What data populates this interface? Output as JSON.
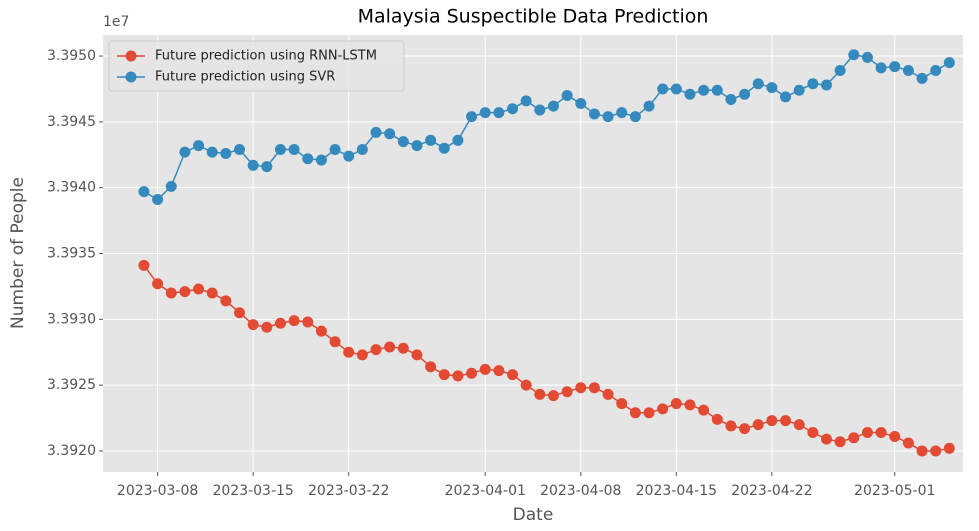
{
  "chart_data": {
    "type": "line",
    "title": "Malaysia Suspectible Data Prediction",
    "x_label": "Date",
    "y_label": "Number of People",
    "y_offset_label": "1e7",
    "x": [
      "2023-03-07",
      "2023-03-08",
      "2023-03-09",
      "2023-03-10",
      "2023-03-11",
      "2023-03-12",
      "2023-03-13",
      "2023-03-14",
      "2023-03-15",
      "2023-03-16",
      "2023-03-17",
      "2023-03-18",
      "2023-03-19",
      "2023-03-20",
      "2023-03-21",
      "2023-03-22",
      "2023-03-23",
      "2023-03-24",
      "2023-03-25",
      "2023-03-26",
      "2023-03-27",
      "2023-03-28",
      "2023-03-29",
      "2023-03-30",
      "2023-03-31",
      "2023-04-01",
      "2023-04-02",
      "2023-04-03",
      "2023-04-04",
      "2023-04-05",
      "2023-04-06",
      "2023-04-07",
      "2023-04-08",
      "2023-04-09",
      "2023-04-10",
      "2023-04-11",
      "2023-04-12",
      "2023-04-13",
      "2023-04-14",
      "2023-04-15",
      "2023-04-16",
      "2023-04-17",
      "2023-04-18",
      "2023-04-19",
      "2023-04-20",
      "2023-04-21",
      "2023-04-22",
      "2023-04-23",
      "2023-04-24",
      "2023-04-25",
      "2023-04-26",
      "2023-04-27",
      "2023-04-28",
      "2023-04-29",
      "2023-04-30",
      "2023-05-01",
      "2023-05-02",
      "2023-05-03",
      "2023-05-04",
      "2023-05-05"
    ],
    "series": [
      {
        "name": "Future prediction using RNN-LSTM",
        "color": "#e24a33",
        "values": [
          3.39341,
          3.39327,
          3.3932,
          3.39321,
          3.39323,
          3.3932,
          3.39314,
          3.39305,
          3.39296,
          3.39294,
          3.39297,
          3.39299,
          3.39298,
          3.39291,
          3.39283,
          3.39275,
          3.39273,
          3.39277,
          3.39279,
          3.39278,
          3.39273,
          3.39264,
          3.39258,
          3.39257,
          3.39259,
          3.39262,
          3.39261,
          3.39258,
          3.3925,
          3.39243,
          3.39242,
          3.39245,
          3.39248,
          3.39248,
          3.39243,
          3.39236,
          3.39229,
          3.39229,
          3.39232,
          3.39236,
          3.39235,
          3.39231,
          3.39224,
          3.39219,
          3.39217,
          3.3922,
          3.39223,
          3.39223,
          3.3922,
          3.39214,
          3.39209,
          3.39207,
          3.3921,
          3.39214,
          3.39214,
          3.39211,
          3.39206,
          3.392,
          3.392,
          3.39202
        ]
      },
      {
        "name": "Future prediction using SVR",
        "color": "#348abd",
        "values": [
          3.39397,
          3.39391,
          3.39401,
          3.39427,
          3.39432,
          3.39427,
          3.39426,
          3.39429,
          3.39417,
          3.39416,
          3.39429,
          3.39429,
          3.39422,
          3.39421,
          3.39429,
          3.39424,
          3.39429,
          3.39442,
          3.39441,
          3.39435,
          3.39432,
          3.39436,
          3.3943,
          3.39436,
          3.39454,
          3.39457,
          3.39457,
          3.3946,
          3.39466,
          3.39459,
          3.39462,
          3.3947,
          3.39464,
          3.39456,
          3.39454,
          3.39457,
          3.39454,
          3.39462,
          3.39475,
          3.39475,
          3.39471,
          3.39474,
          3.39474,
          3.39467,
          3.39471,
          3.39479,
          3.39476,
          3.39469,
          3.39474,
          3.39479,
          3.39478,
          3.39489,
          3.39501,
          3.39499,
          3.39491,
          3.39492,
          3.39489,
          3.39483,
          3.39489,
          3.39495
        ]
      }
    ],
    "xlim": [
      "2023-03-04",
      "2023-05-06"
    ],
    "xticks": [
      "2023-03-08",
      "2023-03-15",
      "2023-03-22",
      "2023-04-01",
      "2023-04-08",
      "2023-04-15",
      "2023-04-22",
      "2023-05-01"
    ],
    "ylim": [
      3.39184,
      3.39516
    ],
    "yticks": [
      {
        "value": 3.392,
        "label": "3.3920"
      },
      {
        "value": 3.3925,
        "label": "3.3925"
      },
      {
        "value": 3.393,
        "label": "3.3930"
      },
      {
        "value": 3.3935,
        "label": "3.3935"
      },
      {
        "value": 3.394,
        "label": "3.3940"
      },
      {
        "value": 3.3945,
        "label": "3.3945"
      },
      {
        "value": 3.395,
        "label": "3.3950"
      }
    ],
    "grid": true,
    "legend": "upper left"
  }
}
